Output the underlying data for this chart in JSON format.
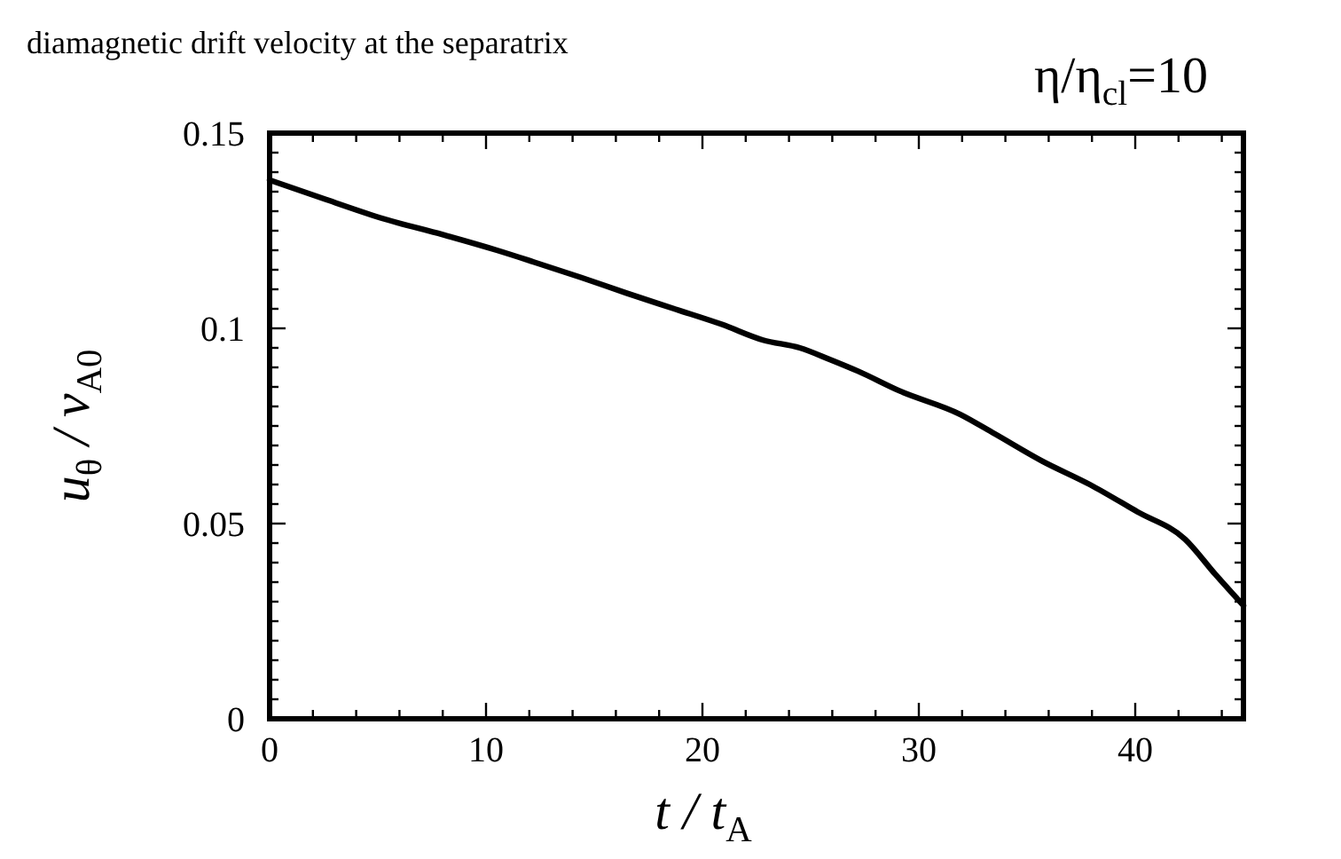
{
  "chart_data": {
    "type": "line",
    "title": "diamagnetic drift velocity at the separatrix",
    "xlabel": "t / t$_{A}$",
    "ylabel": "u$_{θ}$ / v$_{A0}$",
    "annotations": [
      "η/η$_{cl}$=10"
    ],
    "x": [
      0,
      2.6,
      5.3,
      8,
      10.5,
      12.2,
      14.4,
      16.5,
      18.7,
      20.9,
      22.8,
      24.5,
      25.9,
      27.2,
      29.1,
      31.9,
      33.5,
      35.7,
      37.9,
      40.1,
      42.3,
      43.7,
      45
    ],
    "series": [
      {
        "color": "#000000",
        "values": [
          0.138,
          0.133,
          0.128,
          0.124,
          0.12,
          0.117,
          0.113,
          0.109,
          0.105,
          0.101,
          0.097,
          0.095,
          0.092,
          0.089,
          0.084,
          0.078,
          0.073,
          0.066,
          0.06,
          0.053,
          0.046,
          0.037,
          0.029
        ]
      }
    ],
    "line_style": "solid",
    "xlim": [
      0,
      45
    ],
    "ylim": [
      0,
      0.15
    ],
    "xticks": [
      0,
      {
        "value": 2,
        "label": null
      },
      {
        "value": 4,
        "label": null
      },
      {
        "value": 6,
        "label": null
      },
      {
        "value": 8,
        "label": null
      },
      10,
      {
        "value": 12,
        "label": null
      },
      {
        "value": 14,
        "label": null
      },
      {
        "value": 16,
        "label": null
      },
      {
        "value": 18,
        "label": null
      },
      20,
      {
        "value": 22,
        "label": null
      },
      {
        "value": 24,
        "label": null
      },
      {
        "value": 26,
        "label": null
      },
      {
        "value": 28,
        "label": null
      },
      30,
      {
        "value": 32,
        "label": null
      },
      {
        "value": 34,
        "label": null
      },
      {
        "value": 36,
        "label": null
      },
      {
        "value": 38,
        "label": null
      },
      40,
      {
        "value": 42,
        "label": null
      },
      {
        "value": 44,
        "label": null
      }
    ],
    "yticks": [
      0,
      {
        "value": 0.005,
        "label": null
      },
      {
        "value": 0.01,
        "label": null
      },
      {
        "value": 0.015,
        "label": null
      },
      {
        "value": 0.02,
        "label": null
      },
      {
        "value": 0.025,
        "label": null
      },
      {
        "value": 0.03,
        "label": null
      },
      {
        "value": 0.035,
        "label": null
      },
      {
        "value": 0.04,
        "label": null
      },
      {
        "value": 0.045,
        "label": null
      },
      0.05,
      {
        "value": 0.055,
        "label": null
      },
      {
        "value": 0.06,
        "label": null
      },
      {
        "value": 0.065,
        "label": null
      },
      {
        "value": 0.07,
        "label": null
      },
      {
        "value": 0.075,
        "label": null
      },
      {
        "value": 0.08,
        "label": null
      },
      {
        "value": 0.085,
        "label": null
      },
      {
        "value": 0.09,
        "label": null
      },
      {
        "value": 0.095,
        "label": null
      },
      0.1,
      {
        "value": 0.105,
        "label": null
      },
      {
        "value": 0.11,
        "label": null
      },
      {
        "value": 0.115,
        "label": null
      },
      {
        "value": 0.12,
        "label": null
      },
      {
        "value": 0.125,
        "label": null
      },
      {
        "value": 0.13,
        "label": null
      },
      {
        "value": 0.135,
        "label": null
      },
      {
        "value": 0.14,
        "label": null
      },
      {
        "value": 0.145,
        "label": null
      },
      0.15
    ]
  }
}
